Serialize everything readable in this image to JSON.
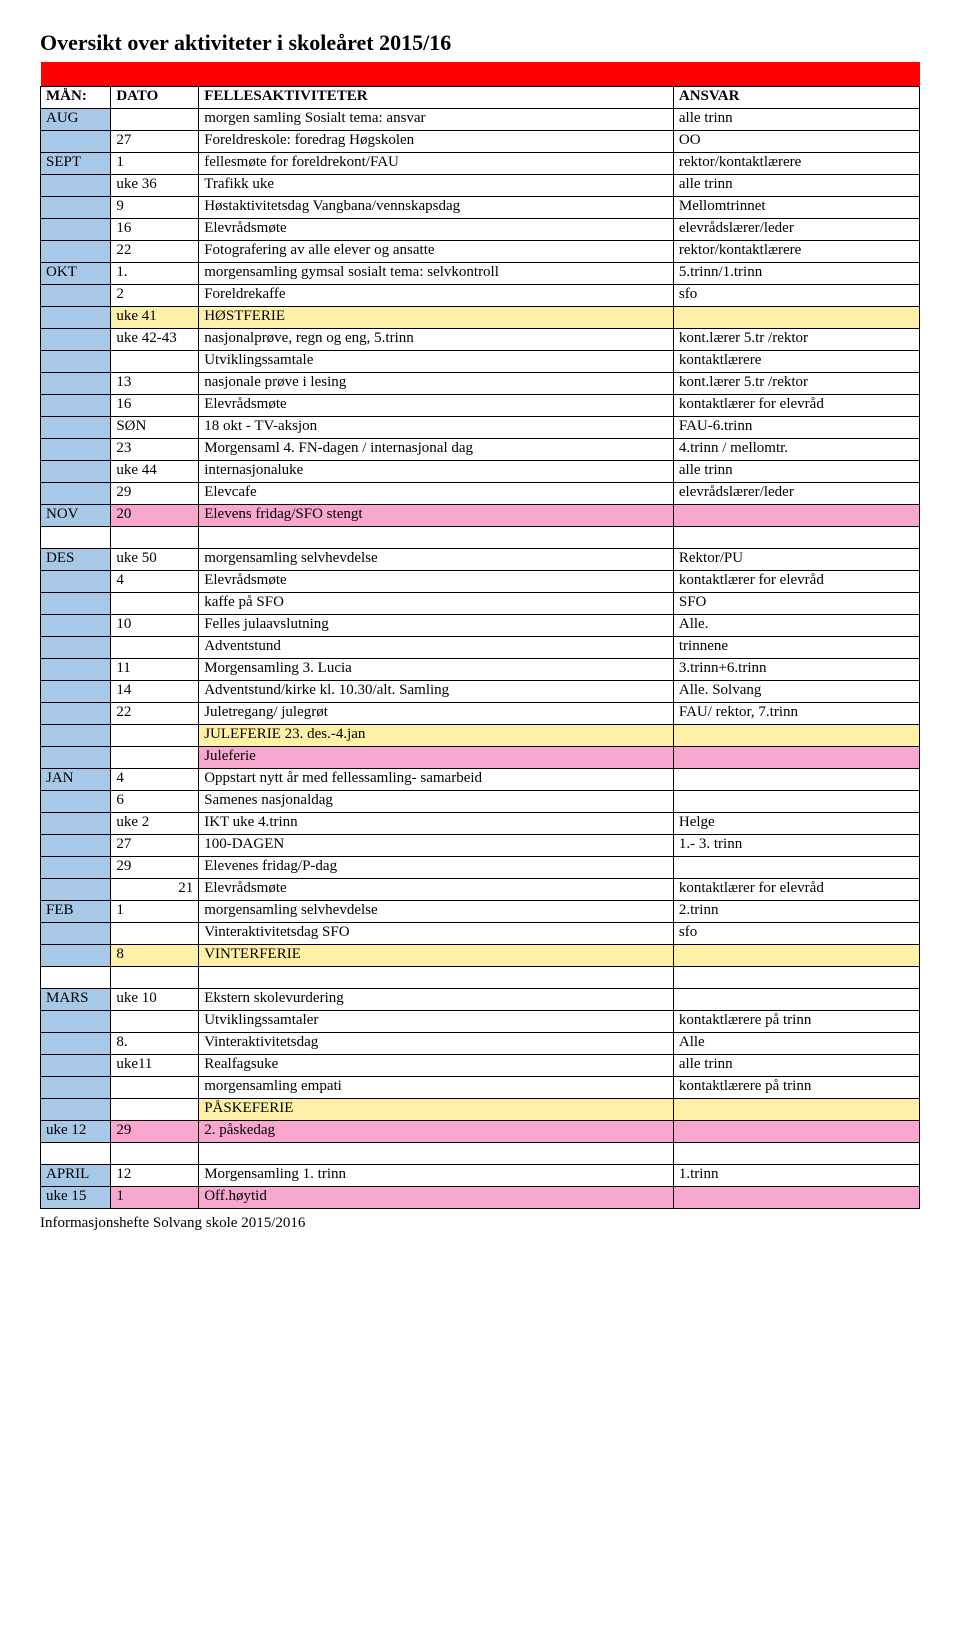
{
  "title": "Oversikt over aktiviteter i skoleåret 2015/16",
  "footer": "Informasjonshefte Solvang skole 2015/2016",
  "colors": {
    "red": "#ff0000",
    "blue": "#a8c8e8",
    "yellow": "#fff2a8",
    "pink": "#f8a8d0",
    "white": "#ffffff"
  },
  "header": {
    "m": "MÅN:",
    "d": "DATO",
    "a": "FELLESAKTIVITETER",
    "r": "ANSVAR"
  },
  "rows": [
    {
      "mbg": "blue",
      "m": "AUG",
      "d": "",
      "a": "morgen samling Sosialt tema: ansvar",
      "r": "alle trinn"
    },
    {
      "mbg": "blue",
      "m": "",
      "d": "27",
      "a": "Foreldreskole: foredrag Høgskolen",
      "r": "OO"
    },
    {
      "mbg": "blue",
      "m": "SEPT",
      "d": "1",
      "a": "fellesmøte for foreldrekont/FAU",
      "r": "rektor/kontaktlærere"
    },
    {
      "mbg": "blue",
      "m": "",
      "d": "uke 36",
      "a": "Trafikk uke",
      "r": "alle trinn"
    },
    {
      "mbg": "blue",
      "m": "",
      "d": "9",
      "a": "Høstaktivitetsdag Vangbana/vennskapsdag",
      "r": "Mellomtrinnet"
    },
    {
      "mbg": "blue",
      "m": "",
      "d": "16",
      "a": "Elevrådsmøte",
      "r": "elevrådslærer/leder"
    },
    {
      "mbg": "blue",
      "m": "",
      "d": "22",
      "a": "Fotografering av alle elever og ansatte",
      "r": "rektor/kontaktlærere"
    },
    {
      "mbg": "blue",
      "m": "OKT",
      "d": "1.",
      "a": "morgensamling gymsal sosialt tema:  selvkontroll",
      "r": "5.trinn/1.trinn"
    },
    {
      "mbg": "blue",
      "m": "",
      "d": "2",
      "a": "Foreldrekaffe",
      "r": "sfo"
    },
    {
      "mbg": "blue",
      "m": "",
      "dbg": "yellow",
      "d": "uke 41",
      "abg": "yellow",
      "a": "HØSTFERIE",
      "rbg": "yellow",
      "r": ""
    },
    {
      "mbg": "blue",
      "m": "",
      "d": "uke 42-43",
      "a": "nasjonalprøve, regn og eng, 5.trinn",
      "r": "kont.lærer 5.tr /rektor"
    },
    {
      "mbg": "blue",
      "m": "",
      "d": "",
      "a": "Utviklingssamtale",
      "r": "kontaktlærere"
    },
    {
      "mbg": "blue",
      "m": "",
      "d": "13",
      "a": "nasjonale prøve i lesing",
      "r": "kont.lærer 5.tr /rektor"
    },
    {
      "mbg": "blue",
      "m": "",
      "d": "16",
      "a": "Elevrådsmøte",
      "r": "kontaktlærer for elevråd"
    },
    {
      "mbg": "blue",
      "m": "",
      "d": "SØN",
      "a": "18 okt - TV-aksjon",
      "r": "FAU-6.trinn"
    },
    {
      "mbg": "blue",
      "m": "",
      "d": "23",
      "a": "Morgensaml 4. FN-dagen / internasjonal dag",
      "r": "4.trinn / mellomtr."
    },
    {
      "mbg": "blue",
      "m": "",
      "d": "uke 44",
      "a": "internasjonaluke",
      "r": "alle trinn"
    },
    {
      "mbg": "blue",
      "m": "",
      "d": "29",
      "a": "Elevcafe",
      "r": "elevrådslærer/leder"
    },
    {
      "mbg": "blue",
      "m": "NOV",
      "dbg": "pink",
      "d": "20",
      "abg": "pink",
      "a": "Elevens fridag/SFO stengt",
      "rbg": "pink",
      "r": ""
    },
    {
      "blank": true
    },
    {
      "mbg": "blue",
      "m": "DES",
      "d": "uke 50",
      "a": "morgensamling selvhevdelse",
      "r": "Rektor/PU"
    },
    {
      "mbg": "blue",
      "m": "",
      "d": "4",
      "a": "Elevrådsmøte",
      "r": "kontaktlærer for elevråd"
    },
    {
      "mbg": "blue",
      "m": "",
      "d": "",
      "a": "kaffe på SFO",
      "r": "SFO"
    },
    {
      "mbg": "blue",
      "m": "",
      "d": "10",
      "a": "Felles julaavslutning",
      "r": "Alle."
    },
    {
      "mbg": "blue",
      "m": "",
      "d": "",
      "a": "Adventstund",
      "r": "trinnene"
    },
    {
      "mbg": "blue",
      "m": "",
      "d": "11",
      "a": "Morgensamling 3. Lucia",
      "r": "3.trinn+6.trinn"
    },
    {
      "mbg": "blue",
      "m": "",
      "d": "14",
      "a": "Adventstund/kirke kl. 10.30/alt. Samling",
      "r": "Alle. Solvang"
    },
    {
      "mbg": "blue",
      "m": "",
      "d": "22",
      "a": "Juletregang/ julegrøt",
      "r": "FAU/ rektor, 7.trinn"
    },
    {
      "mbg": "blue",
      "m": "",
      "d": "",
      "abg": "yellow",
      "a": "JULEFERIE 23. des.-4.jan",
      "rbg": "yellow",
      "r": ""
    },
    {
      "mbg": "blue",
      "m": "",
      "d": "",
      "abg": "pink",
      "a": "Juleferie",
      "rbg": "pink",
      "r": ""
    },
    {
      "mbg": "blue",
      "m": "JAN",
      "d": "4",
      "a": "Oppstart nytt år med fellessamling- samarbeid",
      "r": ""
    },
    {
      "mbg": "blue",
      "m": "",
      "d": "6",
      "a": "Samenes nasjonaldag",
      "r": ""
    },
    {
      "mbg": "blue",
      "m": "",
      "d": "uke 2",
      "a": "IKT uke 4.trinn",
      "r": "Helge"
    },
    {
      "mbg": "blue",
      "m": "",
      "d": "27",
      "a": "100-DAGEN",
      "r": "1.- 3. trinn"
    },
    {
      "mbg": "blue",
      "m": "",
      "d": "29",
      "a": "Elevenes fridag/P-dag",
      "r": ""
    },
    {
      "mbg": "blue",
      "m": "",
      "dright": true,
      "d": "21",
      "a": "Elevrådsmøte",
      "r": "kontaktlærer for elevråd"
    },
    {
      "mbg": "blue",
      "m": "FEB",
      "d": "1",
      "a": "morgensamling selvhevdelse",
      "r": "2.trinn"
    },
    {
      "mbg": "blue",
      "m": "",
      "d": "",
      "a": "Vinteraktivitetsdag SFO",
      "r": "sfo"
    },
    {
      "mbg": "blue",
      "m": "",
      "dbg": "yellow",
      "d": "8",
      "abg": "yellow",
      "a": "VINTERFERIE",
      "rbg": "yellow",
      "r": ""
    },
    {
      "blank": true
    },
    {
      "mbg": "blue",
      "m": "MARS",
      "d": "uke 10",
      "a": "Ekstern skolevurdering",
      "r": ""
    },
    {
      "mbg": "blue",
      "m": "",
      "d": "",
      "a": "Utviklingssamtaler",
      "r": "kontaktlærere på trinn"
    },
    {
      "mbg": "blue",
      "m": "",
      "d": "8.",
      "a": "Vinteraktivitetsdag",
      "r": "Alle"
    },
    {
      "mbg": "blue",
      "m": "",
      "d": "uke11",
      "a": "Realfagsuke",
      "r": "alle trinn"
    },
    {
      "mbg": "blue",
      "m": "",
      "d": "",
      "a": "morgensamling empati",
      "r": "kontaktlærere på trinn"
    },
    {
      "mbg": "blue",
      "m": "",
      "d": "",
      "abg": "yellow",
      "a": "PÅSKEFERIE",
      "rbg": "yellow",
      "r": ""
    },
    {
      "mbg": "blue",
      "m": "uke 12",
      "dbg": "pink",
      "d": "29",
      "abg": "pink",
      "a": "2. påskedag",
      "rbg": "pink",
      "r": ""
    },
    {
      "blank": true
    },
    {
      "mbg": "blue",
      "m": "APRIL",
      "d": "12",
      "a": "Morgensamling 1. trinn",
      "r": "1.trinn"
    },
    {
      "mbg": "blue",
      "m": "uke 15",
      "dbg": "pink",
      "d": "1",
      "abg": "pink",
      "a": "Off.høytid",
      "rbg": "pink",
      "r": ""
    }
  ]
}
